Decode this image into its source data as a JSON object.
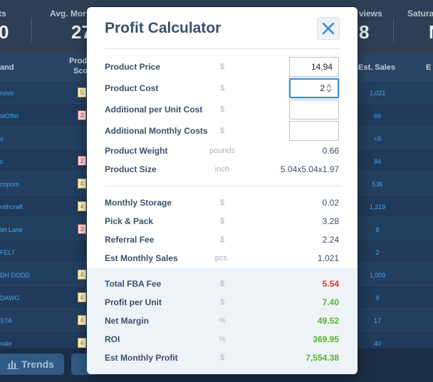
{
  "background": {
    "stats": [
      {
        "label": "ts",
        "value": "0"
      },
      {
        "label": "Avg. Mor",
        "value": "27"
      },
      {
        "label": "views",
        "value": "8"
      },
      {
        "label": "Satura",
        "value": "N"
      }
    ],
    "headers": {
      "brand": "and",
      "score_top": "Prod",
      "score_bottom": "Sco",
      "sales": "Est. Sales",
      "last": "E"
    },
    "rows": [
      {
        "brand": "rvivo",
        "score": "5",
        "score_color": "yellow",
        "sales": "1,021"
      },
      {
        "brand": "stOffer",
        "score": "3",
        "score_color": "red",
        "sales": "66"
      },
      {
        "brand": "x",
        "score": "",
        "score_color": "none",
        "sales": "<5"
      },
      {
        "brand": "c",
        "score": "2",
        "score_color": "red",
        "sales": "84"
      },
      {
        "brand": "copom",
        "score": "4",
        "score_color": "yellow",
        "sales": "536"
      },
      {
        "brand": "nithcraft",
        "score": "4",
        "score_color": "yellow",
        "sales": "1,219"
      },
      {
        "brand": "let Lane",
        "score": "3",
        "score_color": "red",
        "sales": "8"
      },
      {
        "brand": "FELT",
        "score": "",
        "score_color": "none",
        "sales": "2"
      },
      {
        "brand": "DH DODD",
        "score": "4",
        "score_color": "yellow",
        "sales": "1,009"
      },
      {
        "brand": "DAWG",
        "score": "4",
        "score_color": "yellow",
        "sales": "9"
      },
      {
        "brand": "STA",
        "score": "4",
        "score_color": "yellow",
        "sales": "17"
      },
      {
        "brand": "vale",
        "score": "4",
        "score_color": "yellow",
        "sales": "40"
      }
    ],
    "trends_label": "Trends"
  },
  "modal": {
    "title": "Profit Calculator",
    "inputs": [
      {
        "label": "Product Price",
        "unit": "$",
        "value": "14,94"
      },
      {
        "label": "Product Cost",
        "unit": "$",
        "value": "2"
      },
      {
        "label": "Additional per Unit Cost",
        "unit": "$",
        "value": ""
      },
      {
        "label": "Additional Monthly Costs",
        "unit": "$",
        "value": ""
      }
    ],
    "info": [
      {
        "label": "Product Weight",
        "unit": "pounds",
        "value": "0.66"
      },
      {
        "label": "Product Size",
        "unit": "inch",
        "value": "5.04x5.04x1.97"
      }
    ],
    "costs": [
      {
        "label": "Monthly Storage",
        "unit": "$",
        "value": "0.02"
      },
      {
        "label": "Pick & Pack",
        "unit": "$",
        "value": "3.28"
      },
      {
        "label": "Referral Fee",
        "unit": "$",
        "value": "2.24"
      },
      {
        "label": "Est Monthly Sales",
        "unit": "pcs.",
        "value": "1,021"
      }
    ],
    "results": [
      {
        "label": "Total FBA Fee",
        "unit": "$",
        "value": "5.54"
      },
      {
        "label": "Profit per Unit",
        "unit": "$",
        "value": "7.40"
      },
      {
        "label": "Net Margin",
        "unit": "%",
        "value": "49.52"
      },
      {
        "label": "ROI",
        "unit": "%",
        "value": "369.95"
      },
      {
        "label": "Est Monthly Profit",
        "unit": "$",
        "value": "7,554.38"
      }
    ],
    "colors": {
      "negative": "#d83a2c",
      "positive": "#58b32b",
      "accent": "#3b89e0"
    }
  }
}
